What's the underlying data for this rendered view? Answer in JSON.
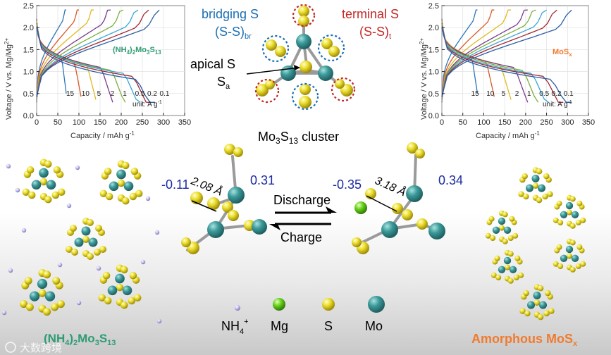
{
  "colors": {
    "mo": "#3c9a9a",
    "s": "#ecde2c",
    "mg": "#69d31a",
    "nh4": "#b9b3e6",
    "bridge": "#1a6fb3",
    "terminal": "#c42626",
    "text_blue": "#1b2aa3",
    "green_label": "#2f9c74",
    "orange_label": "#f07b2f"
  },
  "plot_left": {
    "ylabel": "Voltage / V vs. Mg/Mg",
    "ylabel_sup": "2+",
    "xlabel": "Capacity / mAh g",
    "xlabel_sup": "-1",
    "material_parts": [
      "(NH",
      "4",
      ")",
      "2",
      "Mo",
      "3",
      "S",
      "13"
    ],
    "rates": [
      "15",
      "10",
      "5",
      "2",
      "1",
      "0.5",
      "0.2",
      "0.1"
    ],
    "unit_text": "unit: A g",
    "unit_sup": "-1",
    "chart_data": {
      "type": "line",
      "xlim": [
        0,
        350
      ],
      "ylim": [
        0,
        2.5
      ],
      "xticks": [
        "0",
        "50",
        "100",
        "150",
        "200",
        "250",
        "300",
        "350"
      ],
      "yticks": [
        "0.0",
        "0.5",
        "1.0",
        "1.5",
        "2.0",
        "2.5"
      ],
      "series": [
        {
          "name": "15",
          "color": "#2b76b8",
          "charge_end_x": 70,
          "discharge_end_x": 70
        },
        {
          "name": "10",
          "color": "#d65a25",
          "charge_end_x": 100,
          "discharge_end_x": 105
        },
        {
          "name": "5",
          "color": "#e0b820",
          "charge_end_x": 135,
          "discharge_end_x": 140
        },
        {
          "name": "2",
          "color": "#7a3a8e",
          "charge_end_x": 175,
          "discharge_end_x": 180
        },
        {
          "name": "1",
          "color": "#7cae3c",
          "charge_end_x": 205,
          "discharge_end_x": 210
        },
        {
          "name": "0.5",
          "color": "#3aa6d6",
          "charge_end_x": 240,
          "discharge_end_x": 245
        },
        {
          "name": "0.2",
          "color": "#a02830",
          "charge_end_x": 265,
          "discharge_end_x": 270
        },
        {
          "name": "0.1",
          "color": "#2a5fa8",
          "charge_end_x": 290,
          "discharge_end_x": 280
        }
      ]
    }
  },
  "plot_right": {
    "ylabel": "Voltage / V vs. Mg/Mg",
    "ylabel_sup": "2+",
    "xlabel": "Capacity / mAh g",
    "xlabel_sup": "-1",
    "material_parts": [
      "MoS",
      "x"
    ],
    "rates": [
      "15",
      "10",
      "5",
      "2",
      "1",
      "0.5",
      "0.2",
      "0.1"
    ],
    "unit_text": "unit: A g",
    "unit_sup": "-1",
    "chart_data": {
      "type": "line",
      "xlim": [
        0,
        350
      ],
      "ylim": [
        0,
        2.5
      ],
      "xticks": [
        "0",
        "50",
        "100",
        "150",
        "200",
        "250",
        "300",
        "350"
      ],
      "yticks": [
        "0.0",
        "0.5",
        "1.0",
        "1.5",
        "2.0",
        "2.5"
      ],
      "series": [
        {
          "name": "15",
          "color": "#2b76b8",
          "charge_end_x": 85,
          "discharge_end_x": 85
        },
        {
          "name": "10",
          "color": "#d65a25",
          "charge_end_x": 125,
          "discharge_end_x": 125
        },
        {
          "name": "5",
          "color": "#e0b820",
          "charge_end_x": 165,
          "discharge_end_x": 165
        },
        {
          "name": "2",
          "color": "#7a3a8e",
          "charge_end_x": 205,
          "discharge_end_x": 205
        },
        {
          "name": "1",
          "color": "#7cae3c",
          "charge_end_x": 225,
          "discharge_end_x": 230
        },
        {
          "name": "0.5",
          "color": "#3aa6d6",
          "charge_end_x": 250,
          "discharge_end_x": 255
        },
        {
          "name": "0.2",
          "color": "#a02830",
          "charge_end_x": 275,
          "discharge_end_x": 290
        },
        {
          "name": "0.1",
          "color": "#2a5fa8",
          "charge_end_x": 310,
          "discharge_end_x": 310
        }
      ]
    }
  },
  "cluster": {
    "bridging_line1": "bridging S",
    "bridging_line2": "(S-S)",
    "bridging_sub": "br",
    "terminal_line1": "terminal S",
    "terminal_line2": "(S-S)",
    "terminal_sub": "t",
    "apical_line1": "apical S",
    "apical_line2": "S",
    "apical_sub": "a",
    "caption_parts": [
      "Mo",
      "3",
      "S",
      "13",
      " cluster"
    ]
  },
  "reaction": {
    "left_charge_s": "-0.11",
    "left_charge_mo": "0.31",
    "left_distance": "2.08 Å",
    "right_charge_s": "-0.35",
    "right_charge_mo": "0.34",
    "right_distance": "3.18 Å",
    "discharge": "Discharge",
    "charge": "Charge"
  },
  "legend": [
    {
      "label": "NH",
      "sup": "+",
      "sub": "4",
      "kind": "nh4"
    },
    {
      "label": "Mg",
      "sup": "",
      "sub": "",
      "kind": "mg"
    },
    {
      "label": "S",
      "sup": "",
      "sub": "",
      "kind": "s"
    },
    {
      "label": "Mo",
      "sup": "",
      "sub": "",
      "kind": "mo"
    }
  ],
  "bottom_left_parts": [
    "(NH",
    "4",
    ")",
    "2",
    "Mo",
    "3",
    "S",
    "13"
  ],
  "bottom_right_parts": [
    "Amorphous MoS",
    "x"
  ],
  "watermark": "大数跨境"
}
